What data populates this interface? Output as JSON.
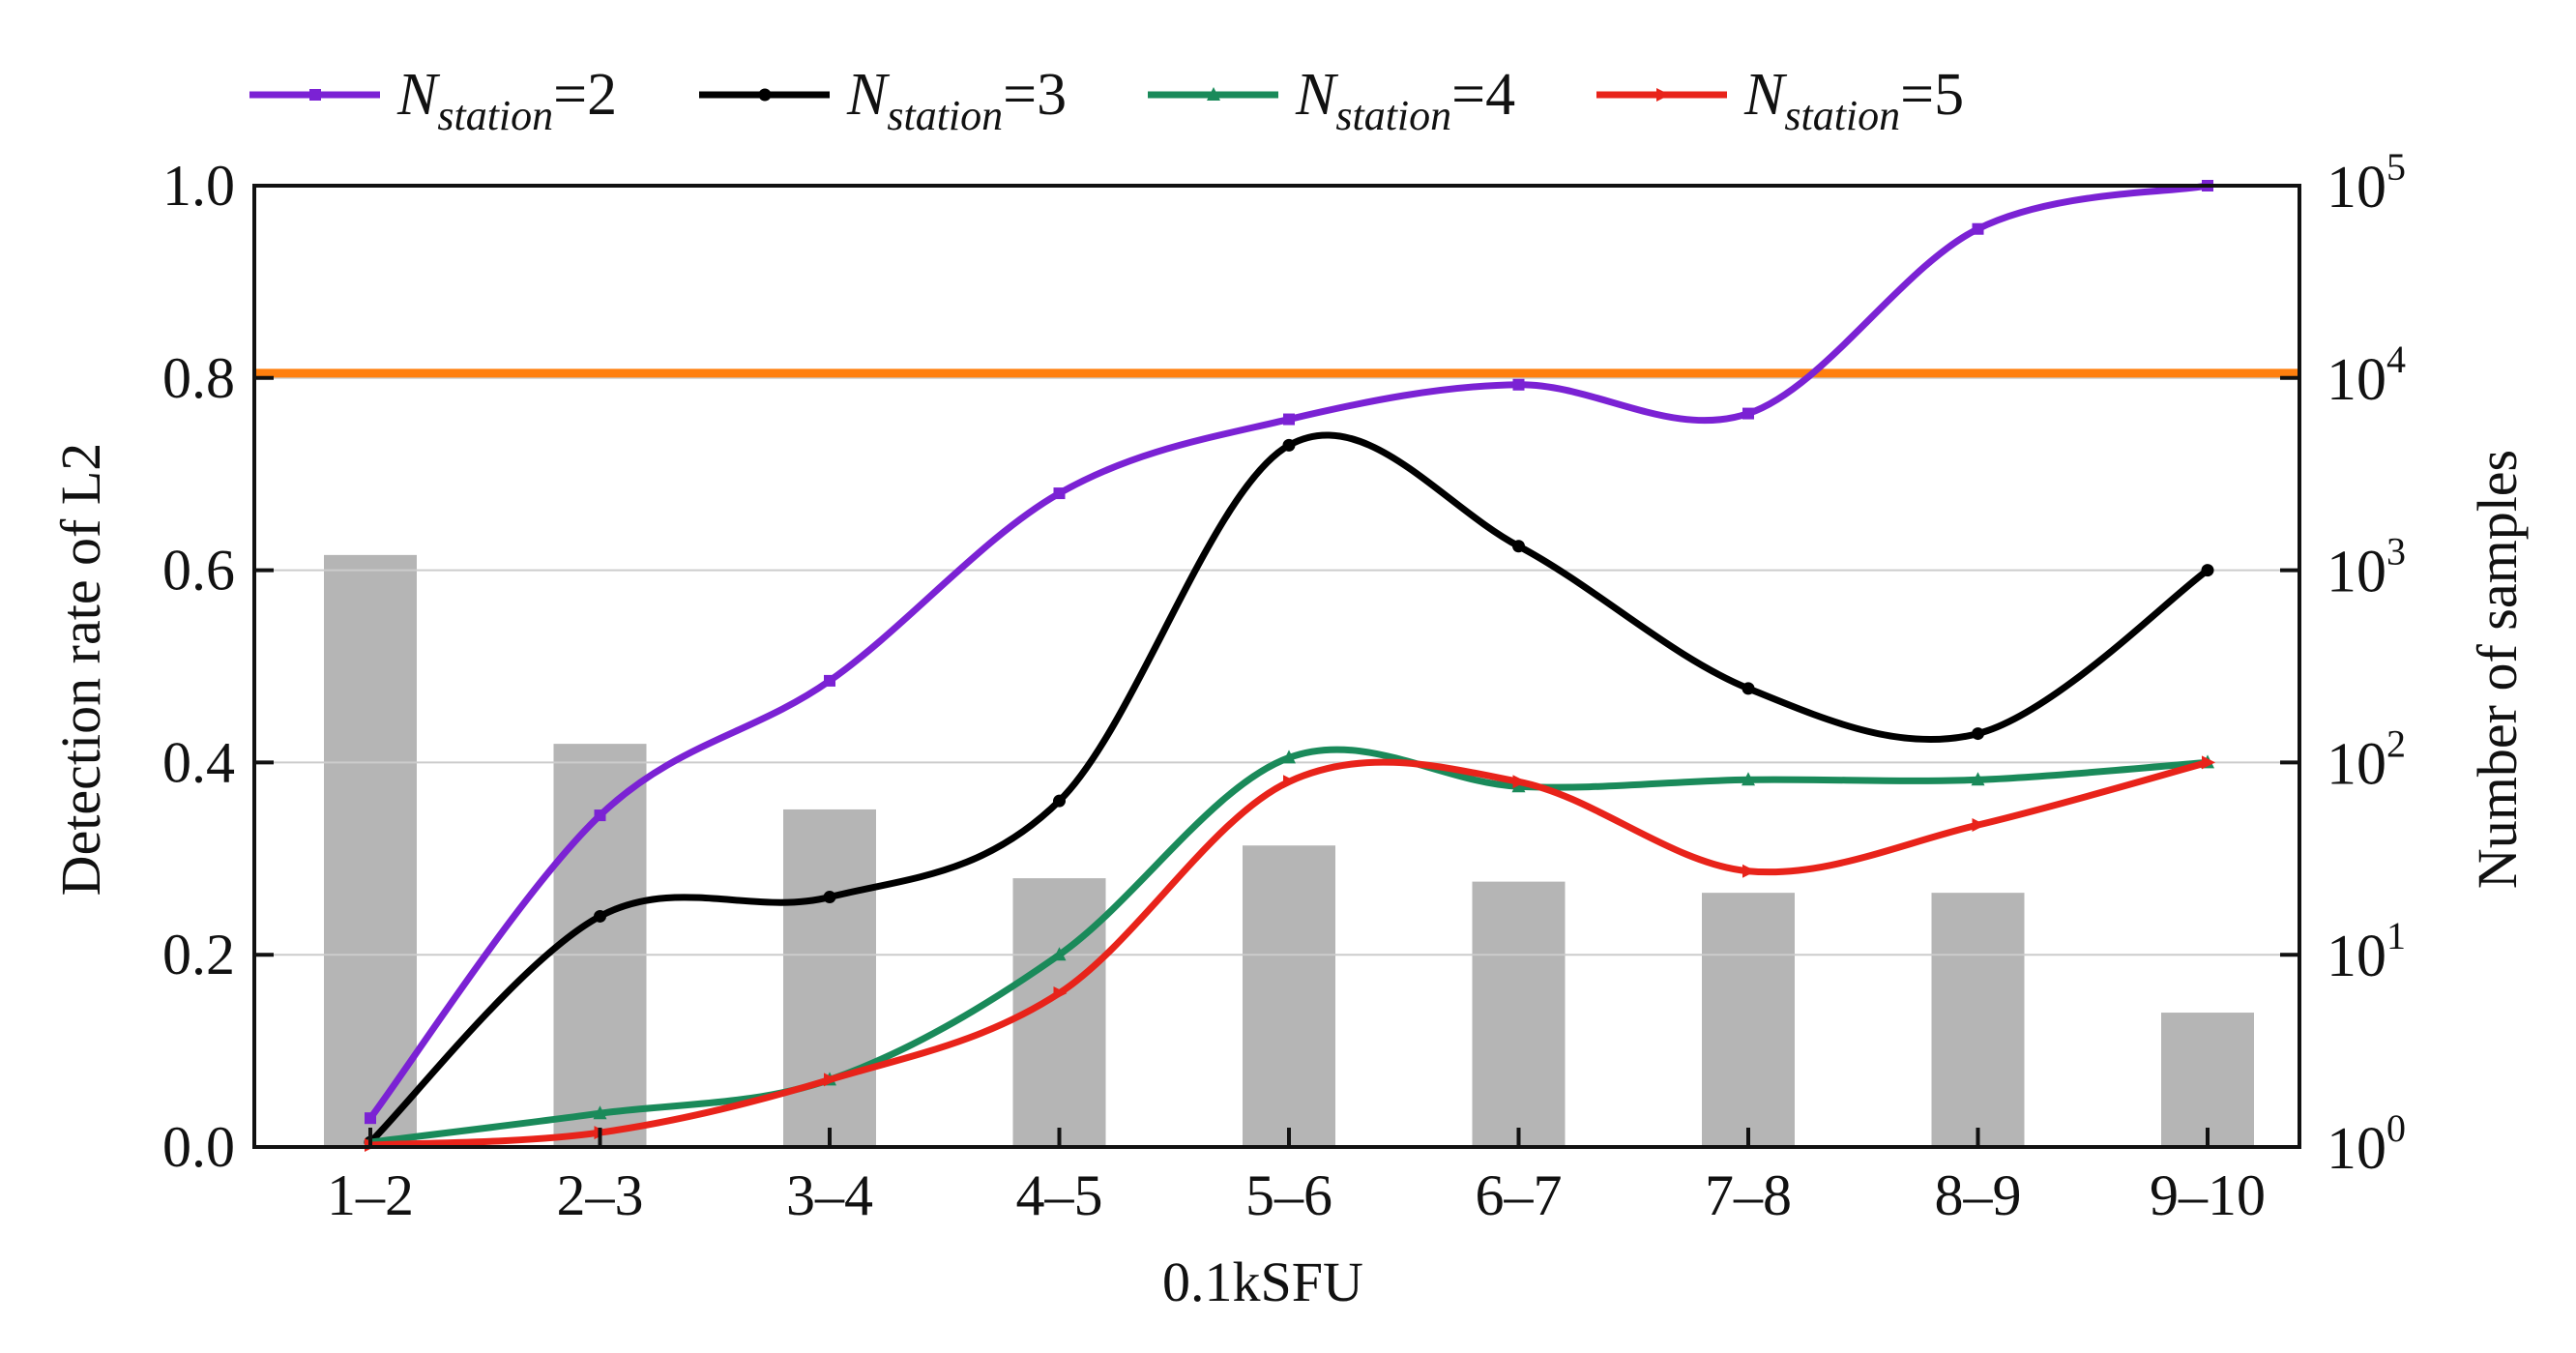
{
  "chart_data": {
    "type": "line",
    "secondary_type": "bar",
    "categories": [
      "1–2",
      "2–3",
      "3–4",
      "4–5",
      "5–6",
      "6–7",
      "7–8",
      "8–9",
      "9–10"
    ],
    "xlabel": "0.1kSFU",
    "ylabel": "Detection rate of  L2",
    "ylabel_right": "Number of samples",
    "ylim": [
      0,
      1.0
    ],
    "yticks": [
      "0.0",
      "0.2",
      "0.4",
      "0.6",
      "0.8",
      "1.0"
    ],
    "ylim_right_log10": [
      0,
      5
    ],
    "yticks_right": [
      {
        "base": "10",
        "exp": "0"
      },
      {
        "base": "10",
        "exp": "1"
      },
      {
        "base": "10",
        "exp": "2"
      },
      {
        "base": "10",
        "exp": "3"
      },
      {
        "base": "10",
        "exp": "4"
      },
      {
        "base": "10",
        "exp": "5"
      }
    ],
    "grid": true,
    "legend_position": "top",
    "legend": [
      {
        "label_main": "N",
        "label_sub": "station",
        "label_value": "=2"
      },
      {
        "label_main": "N",
        "label_sub": "station",
        "label_value": "=3"
      },
      {
        "label_main": "N",
        "label_sub": "station",
        "label_value": "=4"
      },
      {
        "label_main": "N",
        "label_sub": "station",
        "label_value": "=5"
      }
    ],
    "series": [
      {
        "name": "N_station=2",
        "color": "#7b22d4",
        "marker": "square",
        "values": [
          0.03,
          0.345,
          0.485,
          0.68,
          0.757,
          0.793,
          0.763,
          0.955,
          1.0
        ]
      },
      {
        "name": "N_station=3",
        "color": "#000000",
        "marker": "circle",
        "values": [
          0.005,
          0.24,
          0.26,
          0.36,
          0.73,
          0.625,
          0.477,
          0.43,
          0.6
        ]
      },
      {
        "name": "N_station=4",
        "color": "#1a8a5a",
        "marker": "triangle",
        "values": [
          0.005,
          0.035,
          0.07,
          0.2,
          0.405,
          0.375,
          0.382,
          0.382,
          0.4
        ]
      },
      {
        "name": "N_station=5",
        "color": "#e8231a",
        "marker": "arrow",
        "values": [
          0.002,
          0.015,
          0.07,
          0.16,
          0.38,
          0.38,
          0.287,
          0.335,
          0.4
        ]
      }
    ],
    "bars": {
      "name": "Number of samples",
      "color": "#b5b5b5",
      "values": [
        1200,
        125,
        57,
        25,
        37,
        24,
        21,
        21,
        5
      ]
    },
    "reference_line": {
      "value": 0.805,
      "color": "#ff7f0e"
    }
  }
}
